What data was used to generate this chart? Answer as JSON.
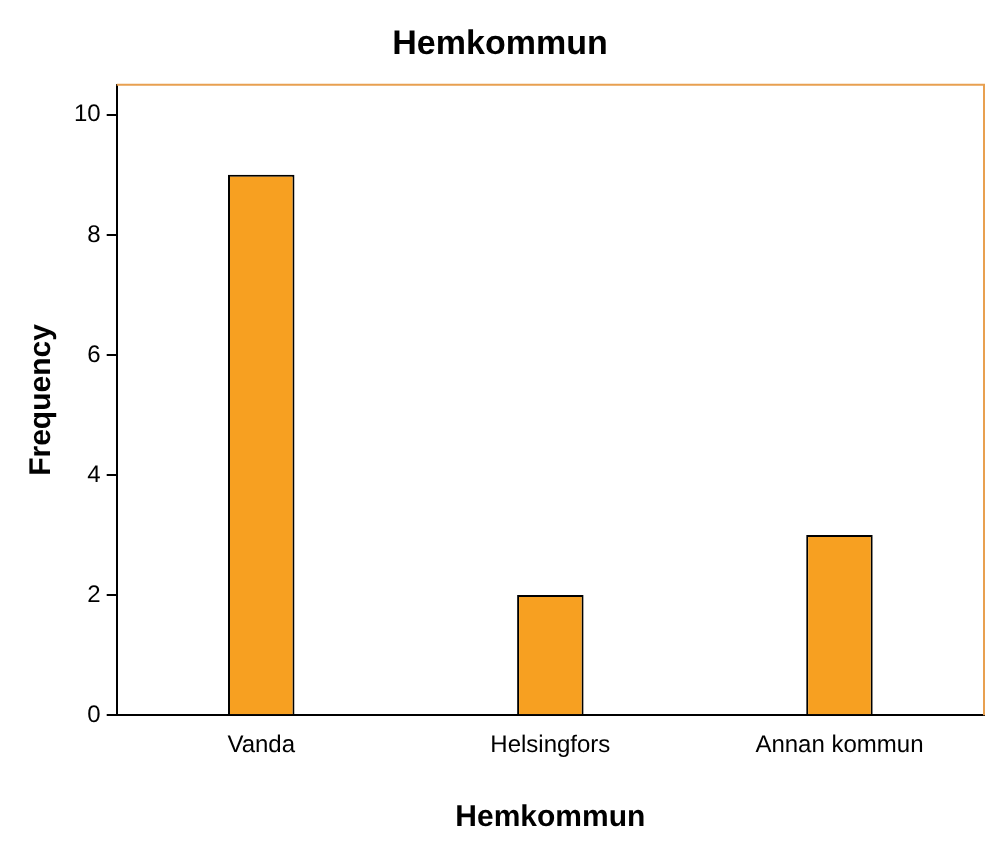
{
  "chart_data": {
    "type": "bar",
    "title": "Hemkommun",
    "xlabel": "Hemkommun",
    "ylabel": "Frequency",
    "categories": [
      "Vanda",
      "Helsingfors",
      "Annan kommun"
    ],
    "values": [
      9,
      2,
      3
    ],
    "color": "#f7a021",
    "ylim": [
      0,
      10.5
    ],
    "yticks": [
      0,
      2,
      4,
      6,
      8,
      10
    ],
    "grid": false,
    "legend": false
  }
}
